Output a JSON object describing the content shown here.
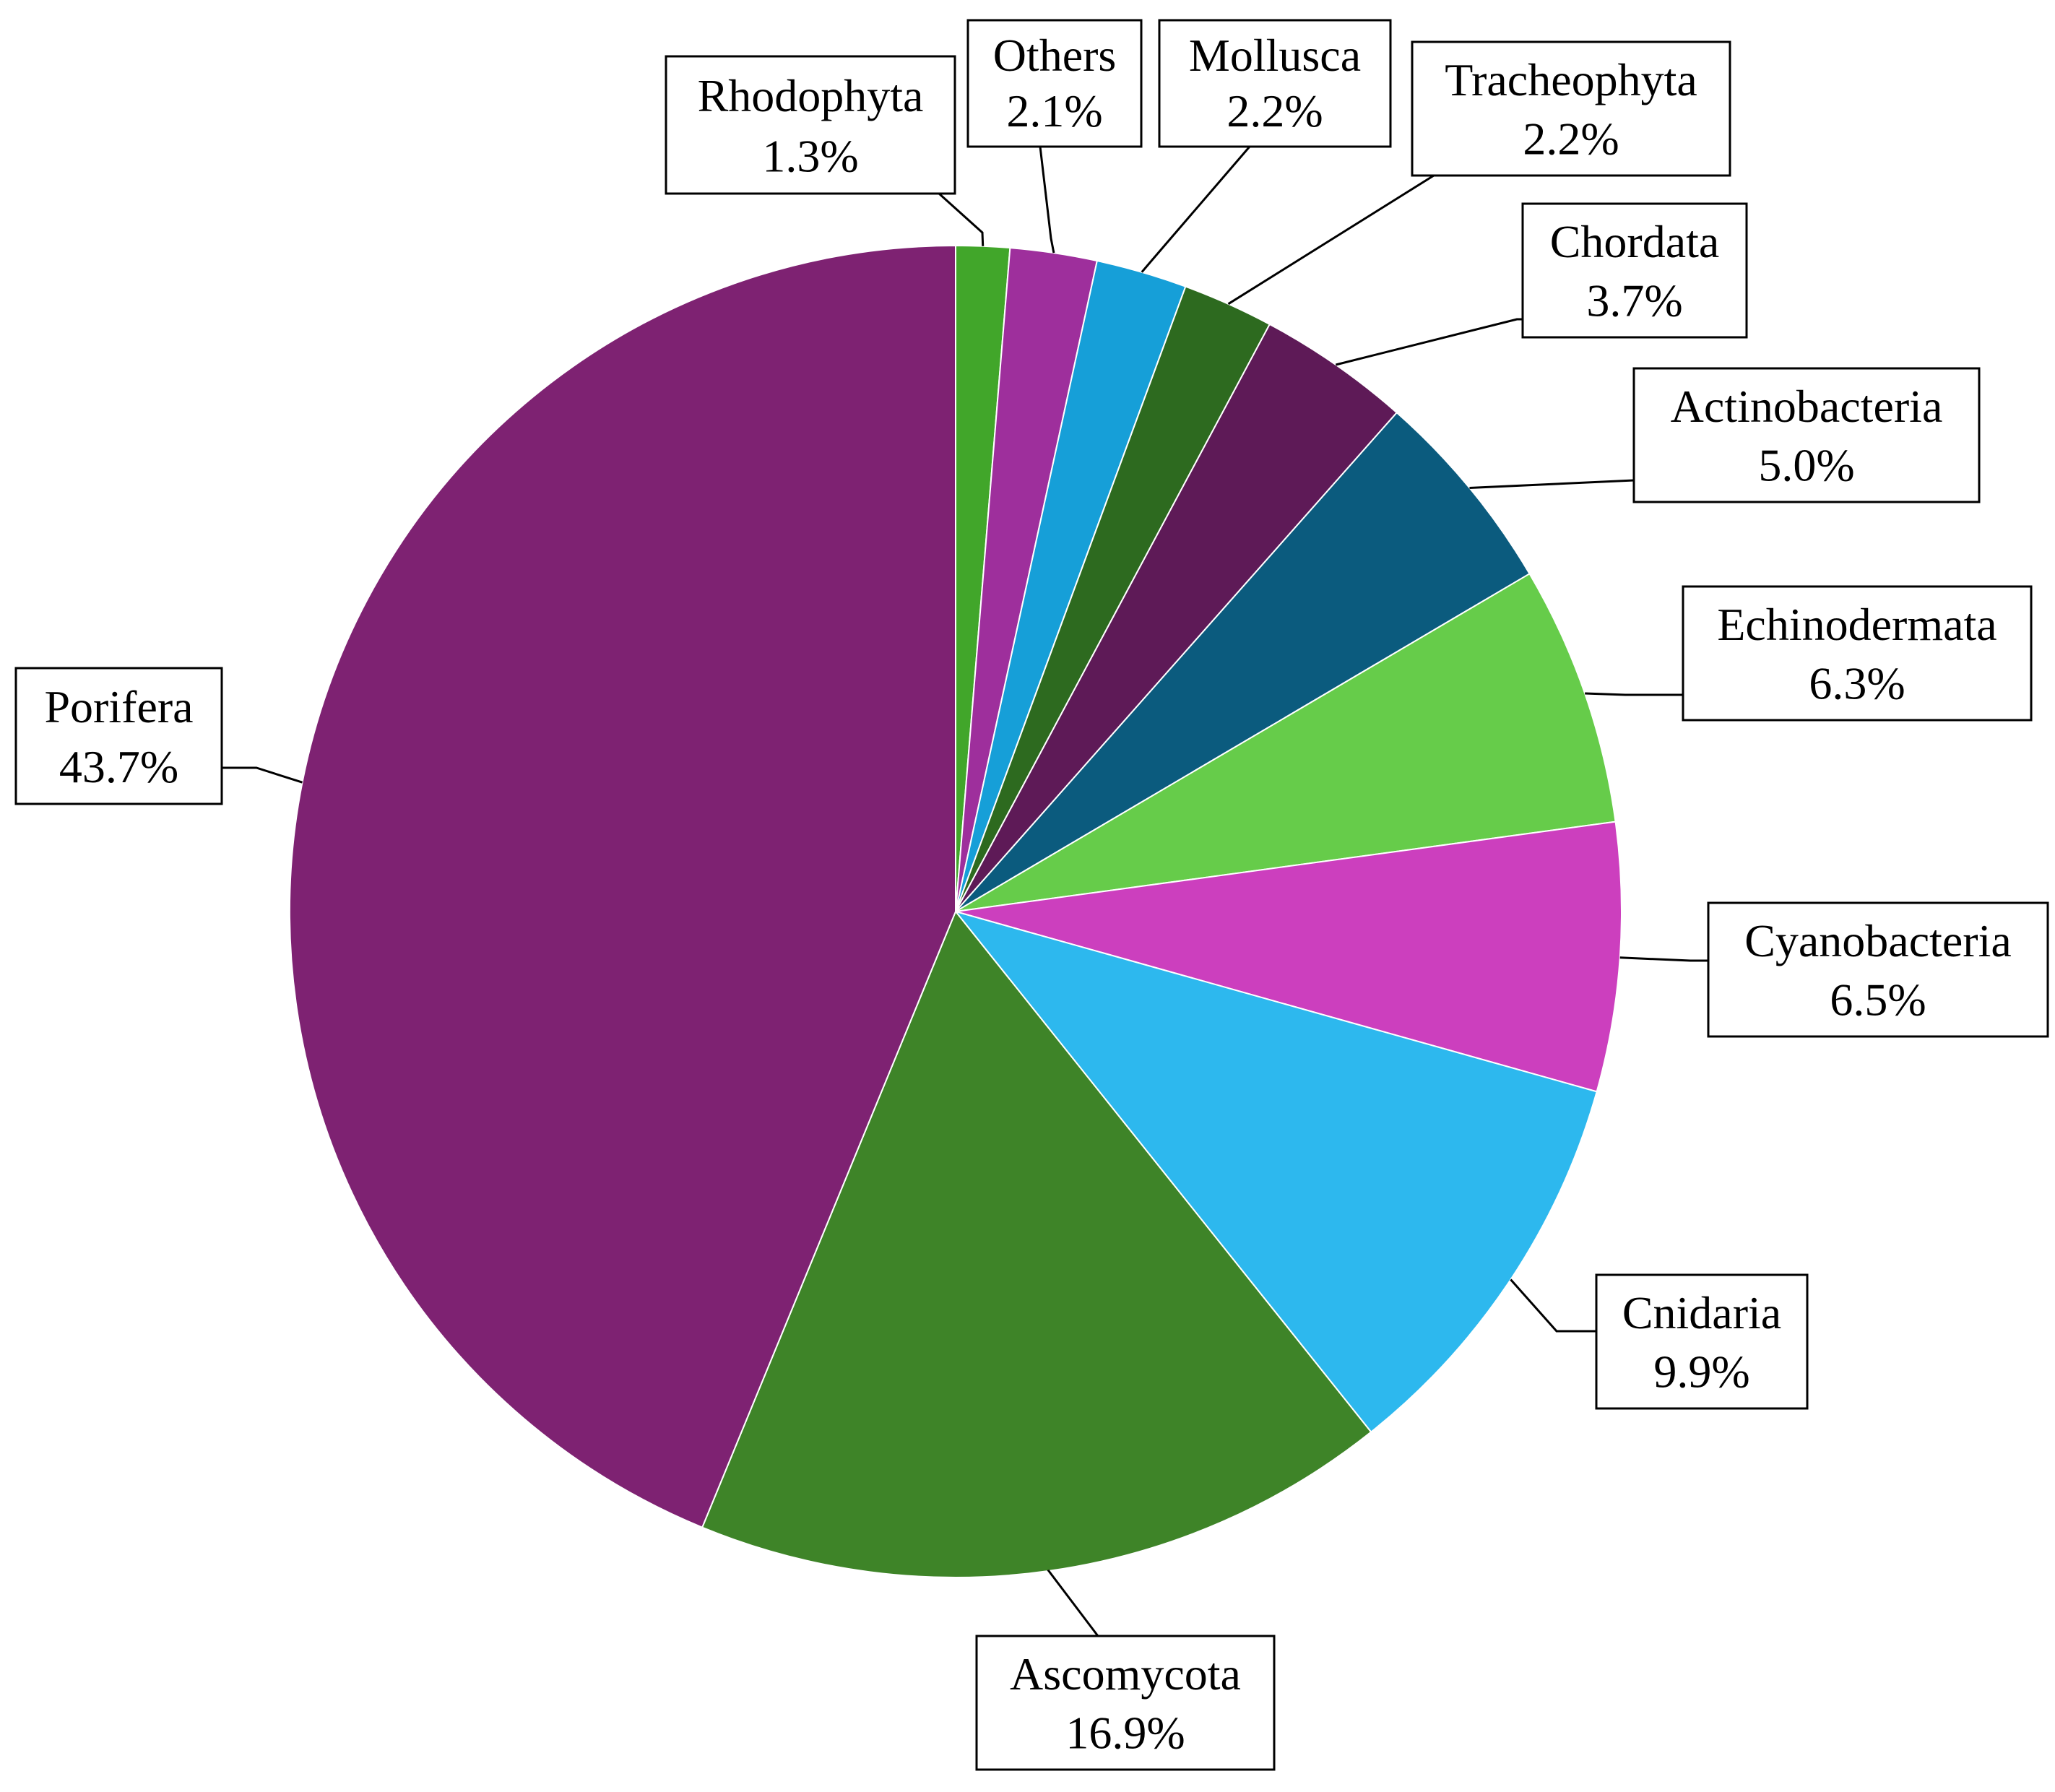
{
  "chart_data": {
    "type": "pie",
    "start_angle_deg": 0,
    "direction": "clockwise",
    "slices": [
      {
        "label": "Rhodophyta",
        "value": 1.3,
        "value_label": "1.3%",
        "color": "#41A62A"
      },
      {
        "label": "Others",
        "value": 2.1,
        "value_label": "2.1%",
        "color": "#9E2F9C"
      },
      {
        "label": "Mollusca",
        "value": 2.2,
        "value_label": "2.2%",
        "color": "#169FD8"
      },
      {
        "label": "Tracheophyta",
        "value": 2.2,
        "value_label": "2.2%",
        "color": "#2D6A1F"
      },
      {
        "label": "Chordata",
        "value": 3.7,
        "value_label": "3.7%",
        "color": "#5E1A57"
      },
      {
        "label": "Actinobacteria",
        "value": 5.0,
        "value_label": "5.0%",
        "color": "#0B5B7E"
      },
      {
        "label": "Echinodermata",
        "value": 6.3,
        "value_label": "6.3%",
        "color": "#66CC4A"
      },
      {
        "label": "Cyanobacteria",
        "value": 6.5,
        "value_label": "6.5%",
        "color": "#CC3FBE"
      },
      {
        "label": "Cnidaria",
        "value": 9.9,
        "value_label": "9.9%",
        "color": "#2DB8EE"
      },
      {
        "label": "Ascomycota",
        "value": 16.9,
        "value_label": "16.9%",
        "color": "#3E8428"
      },
      {
        "label": "Porifera",
        "value": 43.7,
        "value_label": "43.7%",
        "color": "#7E2272"
      }
    ]
  }
}
